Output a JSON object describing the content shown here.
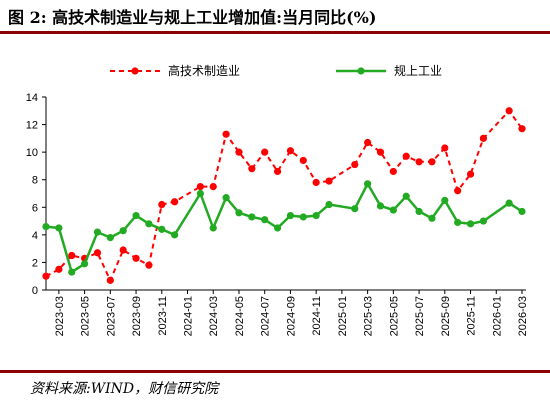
{
  "header": {
    "title": "图 2:  高技术制造业与规上工业增加值:当月同比(%)"
  },
  "footer": {
    "source": "资料来源:WIND，财信研究院"
  },
  "colors": {
    "hightech": "#ff0000",
    "industry": "#22aa22",
    "rule": "#8b0000",
    "axis": "#000000"
  },
  "chart_data": {
    "type": "line",
    "title": "",
    "xlabel": "",
    "ylabel": "",
    "ylim": [
      0,
      14
    ],
    "yticks": [
      0,
      2,
      4,
      6,
      8,
      10,
      12,
      14
    ],
    "grid": false,
    "legend_position": "top",
    "x": [
      "2023-02",
      "2023-03",
      "2023-04",
      "2023-05",
      "2023-06",
      "2023-07",
      "2023-08",
      "2023-09",
      "2023-10",
      "2023-11",
      "2023-12",
      "2024-01",
      "2024-02",
      "2024-03",
      "2024-04",
      "2024-05",
      "2024-06",
      "2024-07",
      "2024-08",
      "2024-09",
      "2024-10",
      "2024-11",
      "2024-12",
      "2025-01",
      "2025-02",
      "2025-03",
      "2025-04",
      "2025-05",
      "2025-06",
      "2025-07",
      "2025-08",
      "2025-09",
      "2025-10",
      "2025-11",
      "2025-12",
      "2026-01",
      "2026-02",
      "2026-03"
    ],
    "xtick_labels": [
      "2023-03",
      "2023-05",
      "2023-07",
      "2023-09",
      "2023-11",
      "2024-01",
      "2024-03",
      "2024-05",
      "2024-07",
      "2024-09",
      "2024-11",
      "2025-01",
      "2025-03",
      "2025-05",
      "2025-07",
      "2025-09",
      "2025-11",
      "2026-01",
      "2026-03"
    ],
    "series": [
      {
        "name": "高技术制造业",
        "style": "dashed",
        "values": [
          1.0,
          1.5,
          2.5,
          2.3,
          2.7,
          0.7,
          2.9,
          2.3,
          1.8,
          6.2,
          6.4,
          null,
          7.5,
          7.5,
          11.3,
          10.0,
          8.8,
          10.0,
          8.6,
          10.1,
          9.4,
          7.8,
          7.9,
          null,
          9.1,
          10.7,
          10.0,
          8.6,
          9.7,
          9.3,
          9.3,
          10.3,
          7.2,
          8.4,
          11.0,
          null,
          13.0,
          11.7
        ]
      },
      {
        "name": "规上工业",
        "style": "solid",
        "values": [
          4.6,
          4.5,
          1.3,
          1.9,
          4.2,
          3.8,
          4.3,
          5.4,
          4.8,
          4.4,
          4.0,
          null,
          7.0,
          4.5,
          6.7,
          5.6,
          5.3,
          5.1,
          4.5,
          5.4,
          5.3,
          5.4,
          6.2,
          null,
          5.9,
          7.7,
          6.1,
          5.8,
          6.8,
          5.7,
          5.2,
          6.5,
          4.9,
          4.8,
          5.0,
          null,
          6.3,
          5.7
        ]
      }
    ]
  }
}
